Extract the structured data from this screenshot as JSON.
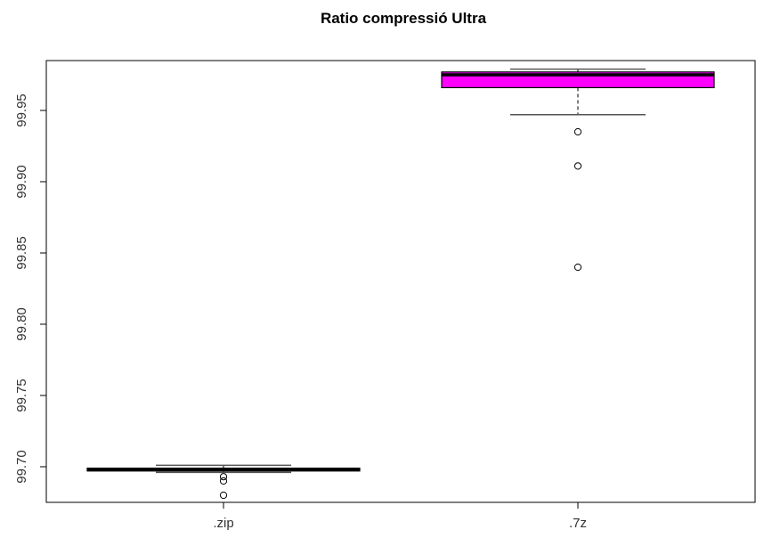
{
  "chart_data": {
    "type": "boxplot",
    "title": "Ratio compressió  Ultra",
    "xlabel": "",
    "ylabel": "",
    "ylim": [
      99.675,
      99.985
    ],
    "y_ticks": [
      "99.70",
      "99.75",
      "99.80",
      "99.85",
      "99.90",
      "99.95"
    ],
    "categories": [
      ".zip",
      ".7z"
    ],
    "boxes": [
      {
        "name": ".zip",
        "fill": "#ffffff",
        "min": 99.696,
        "q1": 99.697,
        "median": 99.698,
        "q3": 99.699,
        "max": 99.701,
        "outliers": [
          99.693,
          99.69,
          99.68
        ]
      },
      {
        "name": ".7z",
        "fill": "#ff00ff",
        "min": 99.947,
        "q1": 99.966,
        "median": 99.975,
        "q3": 99.977,
        "max": 99.979,
        "outliers": [
          99.935,
          99.911,
          99.84
        ]
      }
    ],
    "grid": false,
    "legend": "none"
  }
}
